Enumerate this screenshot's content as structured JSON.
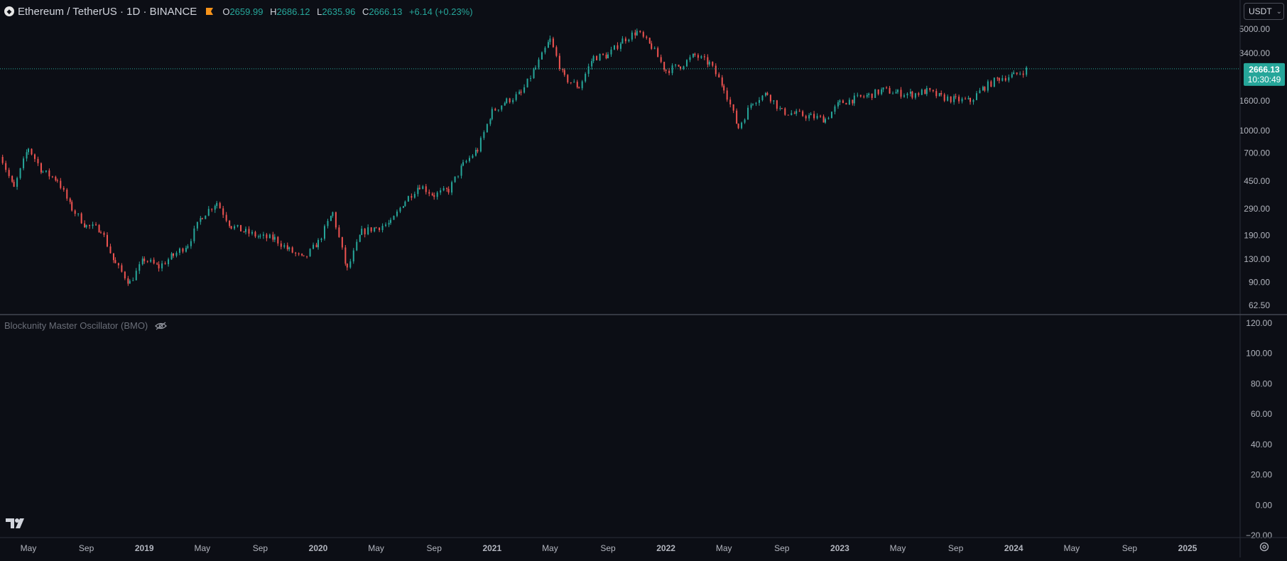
{
  "legend": {
    "symbol_title": "Ethereum / TetherUS · 1D · BINANCE",
    "open_key": "O",
    "open": "2659.99",
    "high_key": "H",
    "high": "2686.12",
    "low_key": "L",
    "low": "2635.96",
    "close_key": "C",
    "close": "2666.13",
    "change": "+6.14 (+0.23%)"
  },
  "currency": {
    "label": "USDT"
  },
  "price_tag": {
    "price": "2666.13",
    "countdown": "10:30:49"
  },
  "indicator": {
    "name": "Blockunity Master Oscillator (BMO)"
  },
  "colors": {
    "up": "#26a69a",
    "down": "#ef5350",
    "background": "#0c0e15",
    "accent": "#f7931a"
  },
  "icons": [
    "ethereum-icon",
    "flag-icon",
    "eye-off-icon",
    "tradingview-logo",
    "settings-icon",
    "chevron-down-icon"
  ],
  "chart_data": {
    "type": "candlestick",
    "x_axis_labels": [
      "May",
      "Sep",
      "2019",
      "May",
      "Sep",
      "2020",
      "May",
      "Sep",
      "2021",
      "May",
      "Sep",
      "2022",
      "May",
      "Sep",
      "2023",
      "May",
      "Sep",
      "2024",
      "May",
      "Sep",
      "2025"
    ],
    "price_axis_labels": [
      "5000.00",
      "3400.00",
      "1600.00",
      "1000.00",
      "700.00",
      "450.00",
      "290.00",
      "190.00",
      "130.00",
      "90.00",
      "62.50"
    ],
    "log_scale": true,
    "approx_price_path": [
      [
        "2018-03",
        700
      ],
      [
        "2018-04",
        400
      ],
      [
        "2018-05",
        760
      ],
      [
        "2018-06",
        520
      ],
      [
        "2018-07",
        460
      ],
      [
        "2018-08",
        290
      ],
      [
        "2018-09",
        220
      ],
      [
        "2018-10",
        210
      ],
      [
        "2018-11",
        120
      ],
      [
        "2018-12",
        90
      ],
      [
        "2019-01",
        130
      ],
      [
        "2019-02",
        115
      ],
      [
        "2019-03",
        138
      ],
      [
        "2019-04",
        165
      ],
      [
        "2019-05",
        260
      ],
      [
        "2019-06",
        320
      ],
      [
        "2019-07",
        220
      ],
      [
        "2019-08",
        200
      ],
      [
        "2019-09",
        185
      ],
      [
        "2019-10",
        180
      ],
      [
        "2019-11",
        150
      ],
      [
        "2019-12",
        130
      ],
      [
        "2020-01",
        170
      ],
      [
        "2020-02",
        270
      ],
      [
        "2020-03",
        110
      ],
      [
        "2020-04",
        200
      ],
      [
        "2020-05",
        215
      ],
      [
        "2020-06",
        230
      ],
      [
        "2020-07",
        330
      ],
      [
        "2020-08",
        420
      ],
      [
        "2020-09",
        360
      ],
      [
        "2020-10",
        390
      ],
      [
        "2020-11",
        580
      ],
      [
        "2020-12",
        740
      ],
      [
        "2021-01",
        1350
      ],
      [
        "2021-02",
        1600
      ],
      [
        "2021-03",
        1800
      ],
      [
        "2021-04",
        2700
      ],
      [
        "2021-05",
        4200
      ],
      [
        "2021-06",
        2300
      ],
      [
        "2021-07",
        2000
      ],
      [
        "2021-08",
        3200
      ],
      [
        "2021-09",
        3300
      ],
      [
        "2021-10",
        4200
      ],
      [
        "2021-11",
        4800
      ],
      [
        "2021-12",
        3800
      ],
      [
        "2022-01",
        2600
      ],
      [
        "2022-02",
        2800
      ],
      [
        "2022-03",
        3300
      ],
      [
        "2022-04",
        2900
      ],
      [
        "2022-05",
        2000
      ],
      [
        "2022-06",
        1050
      ],
      [
        "2022-07",
        1600
      ],
      [
        "2022-08",
        1800
      ],
      [
        "2022-09",
        1350
      ],
      [
        "2022-10",
        1300
      ],
      [
        "2022-11",
        1250
      ],
      [
        "2022-12",
        1200
      ],
      [
        "2023-01",
        1550
      ],
      [
        "2023-02",
        1650
      ],
      [
        "2023-03",
        1750
      ],
      [
        "2023-04",
        1900
      ],
      [
        "2023-05",
        1820
      ],
      [
        "2023-06",
        1780
      ],
      [
        "2023-07",
        1870
      ],
      [
        "2023-08",
        1700
      ],
      [
        "2023-09",
        1630
      ],
      [
        "2023-10",
        1600
      ],
      [
        "2023-11",
        2000
      ],
      [
        "2023-12",
        2300
      ],
      [
        "2024-01",
        2400
      ],
      [
        "2024-02",
        2666.13
      ]
    ],
    "oscillator_axis_labels": [
      "120.00",
      "100.00",
      "80.00",
      "60.00",
      "40.00",
      "20.00",
      "0.00",
      "−20.00"
    ],
    "oscillator_visible": false
  }
}
